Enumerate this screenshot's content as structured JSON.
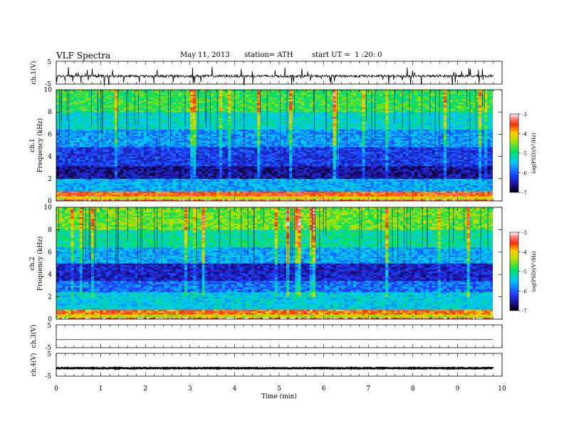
{
  "header": {
    "title": "VLF Spectra",
    "date": "May 11, 2013",
    "station": "station= ATH",
    "start": "start UT =  1 :20: 0"
  },
  "chart_data": [
    {
      "type": "line",
      "panel": "ch1",
      "ylabel": "ch.1(V)",
      "ylim": [
        -5,
        5
      ],
      "yticks": [
        "5",
        "-5"
      ],
      "description_values": {
        "baseline": -1.5,
        "noise_range": [
          -3,
          0
        ]
      },
      "x_range_min": [
        0,
        9.8
      ]
    },
    {
      "type": "heatmap",
      "panel": "ch1-spectrogram",
      "ylabel": "ch.1\nFrequency (kHz)",
      "ylim": [
        0,
        10
      ],
      "yticks": [
        "0",
        "2",
        "4",
        "6",
        "8",
        "10"
      ],
      "colorbar": {
        "label": "log(PSD)(V²/Hz)",
        "ticks": [
          "-3",
          "-4",
          "-5",
          "-6",
          "-7"
        ],
        "range": [
          -7,
          -3
        ]
      },
      "bands_khz": [
        {
          "f0": 0.0,
          "f1": 0.2,
          "level": -3.4
        },
        {
          "f0": 0.2,
          "f1": 0.5,
          "level": -4.2
        },
        {
          "f0": 0.5,
          "f1": 0.9,
          "level": -3.6
        },
        {
          "f0": 0.9,
          "f1": 2.0,
          "level": -5.6
        },
        {
          "f0": 2.0,
          "f1": 3.2,
          "level": -6.6
        },
        {
          "f0": 3.2,
          "f1": 4.8,
          "level": -6.2
        },
        {
          "f0": 4.8,
          "f1": 6.5,
          "level": -5.7
        },
        {
          "f0": 6.5,
          "f1": 8.0,
          "level": -5.3
        },
        {
          "f0": 8.0,
          "f1": 10.0,
          "level": -4.8
        }
      ]
    },
    {
      "type": "heatmap",
      "panel": "ch2-spectrogram",
      "ylabel": "ch.2\nFrequency (kHz)",
      "ylim": [
        0,
        10
      ],
      "yticks": [
        "0",
        "2",
        "4",
        "6",
        "8",
        "10"
      ],
      "colorbar": {
        "label": "log(PSD)(V²/Hz)",
        "ticks": [
          "-3",
          "-4",
          "-5",
          "-6",
          "-7"
        ],
        "range": [
          -7,
          -3
        ]
      },
      "bands_khz": [
        {
          "f0": 0.0,
          "f1": 0.2,
          "level": -3.3
        },
        {
          "f0": 0.2,
          "f1": 0.5,
          "level": -4.3
        },
        {
          "f0": 0.5,
          "f1": 0.9,
          "level": -3.7
        },
        {
          "f0": 0.9,
          "f1": 2.5,
          "level": -5.4
        },
        {
          "f0": 2.5,
          "f1": 3.5,
          "level": -5.9
        },
        {
          "f0": 3.5,
          "f1": 5.0,
          "level": -6.4
        },
        {
          "f0": 5.0,
          "f1": 6.5,
          "level": -5.6
        },
        {
          "f0": 6.5,
          "f1": 8.0,
          "level": -5.1
        },
        {
          "f0": 8.0,
          "f1": 10.0,
          "level": -4.6
        }
      ]
    },
    {
      "type": "line",
      "panel": "ch3",
      "ylabel": "ch.3(V)",
      "ylim": [
        -5,
        5
      ],
      "yticks": [
        "5",
        "-5"
      ],
      "description_values": {
        "baseline": -1.5
      }
    },
    {
      "type": "line",
      "panel": "ch4",
      "ylabel": "ch.4(V)",
      "ylim": [
        -5,
        5
      ],
      "yticks": [
        "5",
        "-5"
      ],
      "description_values": {
        "baseline": -1.5
      }
    }
  ],
  "xaxis": {
    "label": "Time (min)",
    "ticks": [
      "0",
      "1",
      "2",
      "3",
      "4",
      "5",
      "6",
      "7",
      "8",
      "9",
      "10"
    ],
    "range": [
      0,
      10
    ],
    "data_end": 9.8
  },
  "colors": {
    "axis": "#000000",
    "trace": "#000000"
  }
}
